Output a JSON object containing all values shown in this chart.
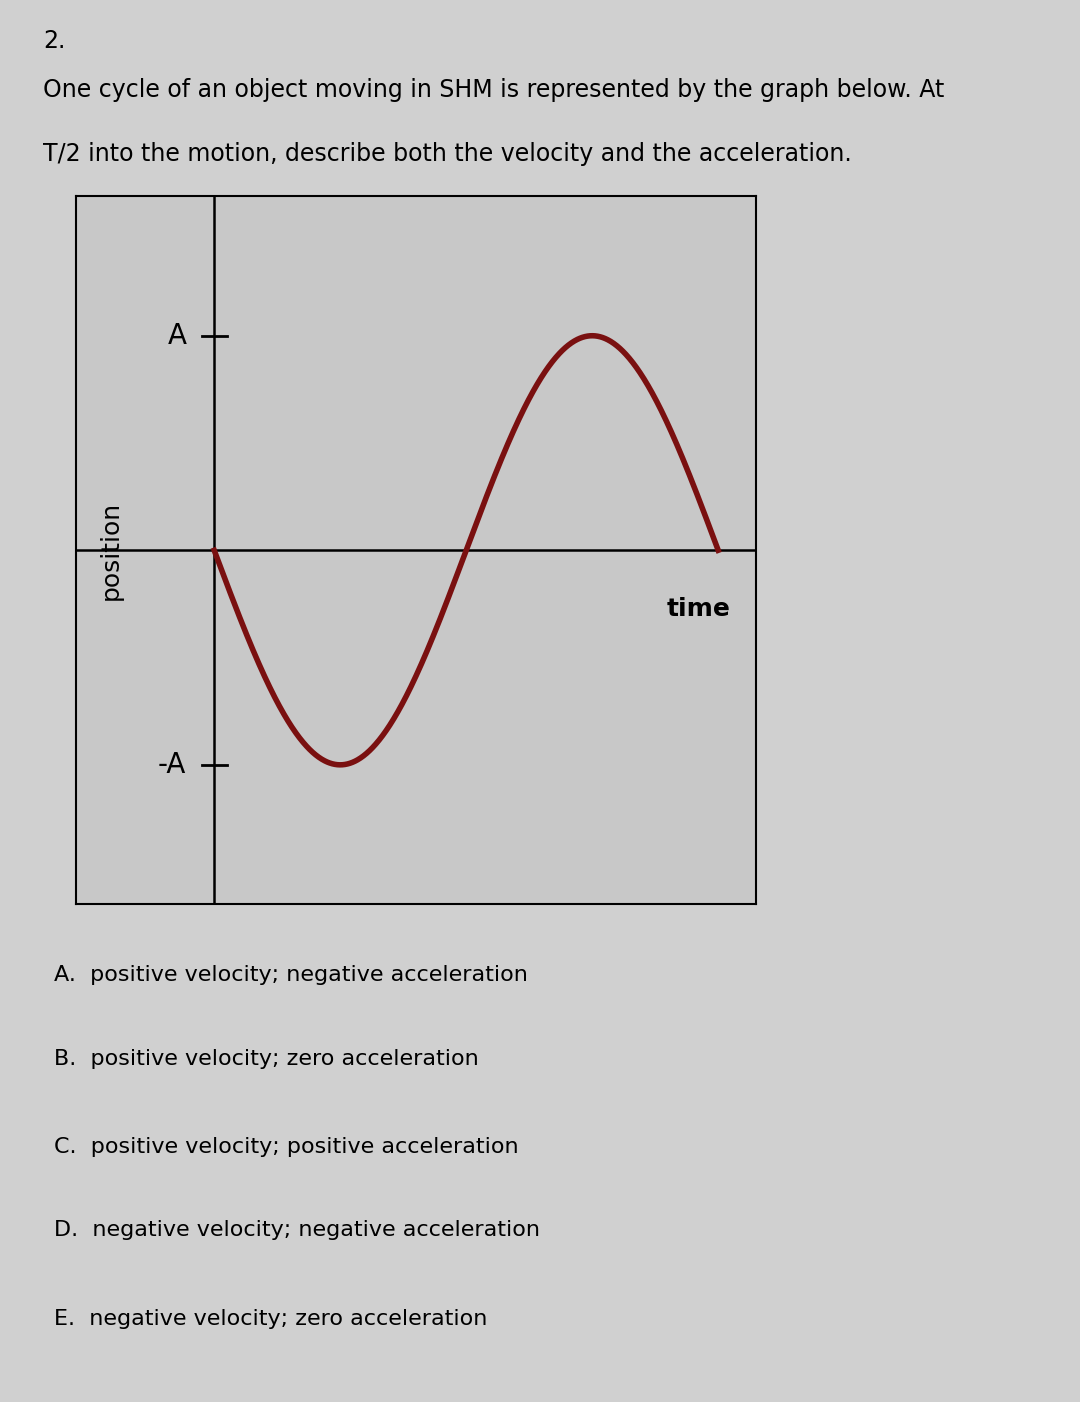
{
  "question_number": "2.",
  "question_text_line1": "One cycle of an object moving in SHM is represented by the graph below. At",
  "question_text_line2": "T/2 into the motion, describe both the velocity and the acceleration.",
  "xlabel": "time",
  "ylabel": "position",
  "y_tick_A_label": "A",
  "y_tick_negA_label": "-A",
  "curve_color": "#7a1010",
  "curve_linewidth": 4.0,
  "axis_color": "#000000",
  "background_color": "#d0d0d0",
  "plot_bg_color": "#c8c8c8",
  "options": [
    "A.  positive velocity; negative acceleration",
    "B.  positive velocity; zero acceleration",
    "C.  positive velocity; positive acceleration",
    "D.  negative velocity; negative acceleration",
    "E.  negative velocity; zero acceleration"
  ],
  "options_fontsize": 16,
  "question_fontsize": 17
}
